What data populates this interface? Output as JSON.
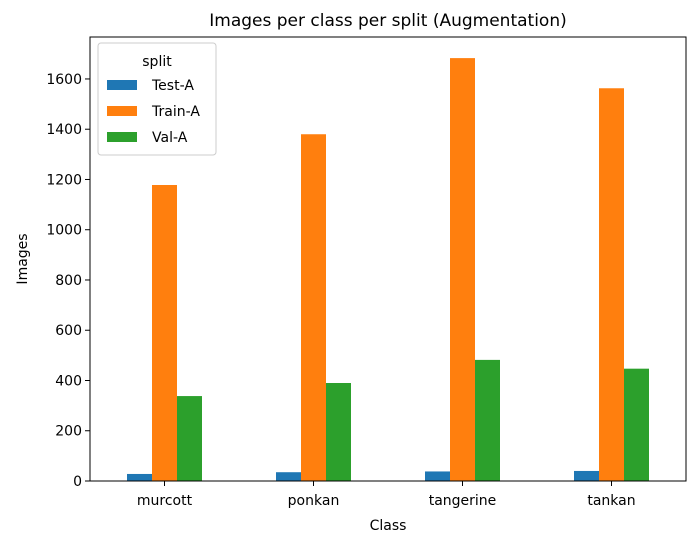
{
  "chart_data": {
    "type": "bar",
    "title": "Images per class per split (Augmentation)",
    "xlabel": "Class",
    "ylabel": "Images",
    "categories": [
      "murcott",
      "ponkan",
      "tangerine",
      "tankan"
    ],
    "series": [
      {
        "name": "Test-A",
        "values": [
          28,
          35,
          38,
          40
        ],
        "color": "#1f77b4"
      },
      {
        "name": "Train-A",
        "values": [
          1178,
          1380,
          1683,
          1563
        ],
        "color": "#ff7f0e"
      },
      {
        "name": "Val-A",
        "values": [
          338,
          390,
          482,
          447
        ],
        "color": "#2ca02c"
      }
    ],
    "ylim": [
      0,
      1767
    ],
    "yticks": [
      0,
      200,
      400,
      600,
      800,
      1000,
      1200,
      1400,
      1600
    ],
    "grid": false,
    "legend": {
      "title": "split",
      "placement": "top-left"
    }
  }
}
